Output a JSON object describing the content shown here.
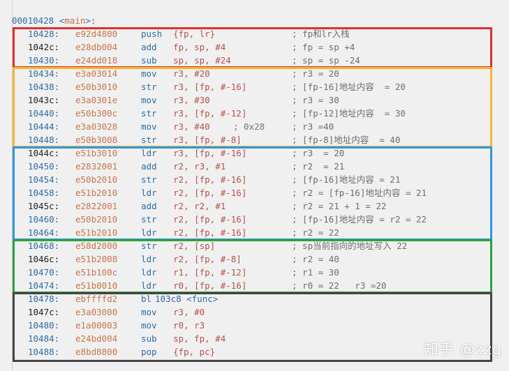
{
  "header": {
    "address": "00010428",
    "label": "main"
  },
  "colors": {
    "red": "#e0302a",
    "yellow": "#f2b630",
    "blue": "#2f97e0",
    "green": "#2ea33a",
    "dark": "#444444"
  },
  "rows": [
    {
      "addr": "10428:",
      "hex": "e92d4800",
      "op": "push",
      "args": "{fp, lr}",
      "comment": "; fp和lr入栈"
    },
    {
      "addr": "1042c:",
      "hex": "e28db004",
      "op": "add",
      "args": "fp, sp, #4",
      "comment": "; fp = sp +4"
    },
    {
      "addr": "10430:",
      "hex": "e24dd018",
      "op": "sub",
      "args": "sp, sp, #24",
      "comment": "; sp = sp -24"
    },
    {
      "addr": "10434:",
      "hex": "e3a03014",
      "op": "mov",
      "args": "r3, #20",
      "comment": "; r3 = 20"
    },
    {
      "addr": "10438:",
      "hex": "e50b3010",
      "op": "str",
      "args": "r3, [fp, #-16]",
      "comment": "; [fp-16]地址内容  = 20"
    },
    {
      "addr": "1043c:",
      "hex": "e3a0301e",
      "op": "mov",
      "args": "r3, #30",
      "comment": "; r3 = 30"
    },
    {
      "addr": "10440:",
      "hex": "e50b300c",
      "op": "str",
      "args": "r3, [fp, #-12]",
      "comment": "; [fp-12]地址内容  = 30"
    },
    {
      "addr": "10444:",
      "hex": "e3a03028",
      "op": "mov",
      "args": "r3, #40",
      "note": "; 0x28",
      "comment": "; r3 =40"
    },
    {
      "addr": "10448:",
      "hex": "e50b3008",
      "op": "str",
      "args": "r3, [fp, #-8]",
      "comment": "; [fp-8]地址内容  = 40"
    },
    {
      "addr": "1044c:",
      "hex": "e51b3010",
      "op": "ldr",
      "args": "r3, [fp, #-16]",
      "comment": "; r3  = 20"
    },
    {
      "addr": "10450:",
      "hex": "e2832001",
      "op": "add",
      "args": "r2, r3, #1",
      "comment": "; r2  = 21"
    },
    {
      "addr": "10454:",
      "hex": "e50b2010",
      "op": "str",
      "args": "r2, [fp, #-16]",
      "comment": "; [fp-16]地址内容 = 21"
    },
    {
      "addr": "10458:",
      "hex": "e51b2010",
      "op": "ldr",
      "args": "r2, [fp, #-16]",
      "comment": "; r2 = [fp-16]地址内容 = 21"
    },
    {
      "addr": "1045c:",
      "hex": "e2822001",
      "op": "add",
      "args": "r2, r2, #1",
      "comment": "; r2 = 21 + 1 = 22"
    },
    {
      "addr": "10460:",
      "hex": "e50b2010",
      "op": "str",
      "args": "r2, [fp, #-16]",
      "comment": "; [fp-16]地址内容 = r2 = 22"
    },
    {
      "addr": "10464:",
      "hex": "e51b2010",
      "op": "ldr",
      "args": "r2, [fp, #-16]",
      "comment": "; r2 = 22"
    },
    {
      "addr": "10468:",
      "hex": "e58d2000",
      "op": "str",
      "args": "r2, [sp]",
      "comment": "; sp当前指向的地址写入 22"
    },
    {
      "addr": "1046c:",
      "hex": "e51b2008",
      "op": "ldr",
      "args": "r2, [fp, #-8]",
      "comment": "; r2 = 40"
    },
    {
      "addr": "10470:",
      "hex": "e51b100c",
      "op": "ldr",
      "args": "r1, [fp, #-12]",
      "comment": "; r1 = 30"
    },
    {
      "addr": "10474:",
      "hex": "e51b0010",
      "op": "ldr",
      "args": "r0, [fp, #-16]",
      "comment": "; r0 = 22   r3 =20"
    },
    {
      "addr": "10478:",
      "hex": "ebffffd2",
      "op": "bl",
      "args": "103c8 <func>",
      "comment": ""
    },
    {
      "addr": "1047c:",
      "hex": "e3a03000",
      "op": "mov",
      "args": "r3, #0",
      "comment": ""
    },
    {
      "addr": "10480:",
      "hex": "e1a00003",
      "op": "mov",
      "args": "r0, r3",
      "comment": ""
    },
    {
      "addr": "10484:",
      "hex": "e24bd004",
      "op": "sub",
      "args": "sp, fp, #4",
      "comment": ""
    },
    {
      "addr": "10488:",
      "hex": "e8bd8800",
      "op": "pop",
      "args": "{fp, pc}",
      "comment": ""
    }
  ],
  "watermark": "知乎 @zzg"
}
